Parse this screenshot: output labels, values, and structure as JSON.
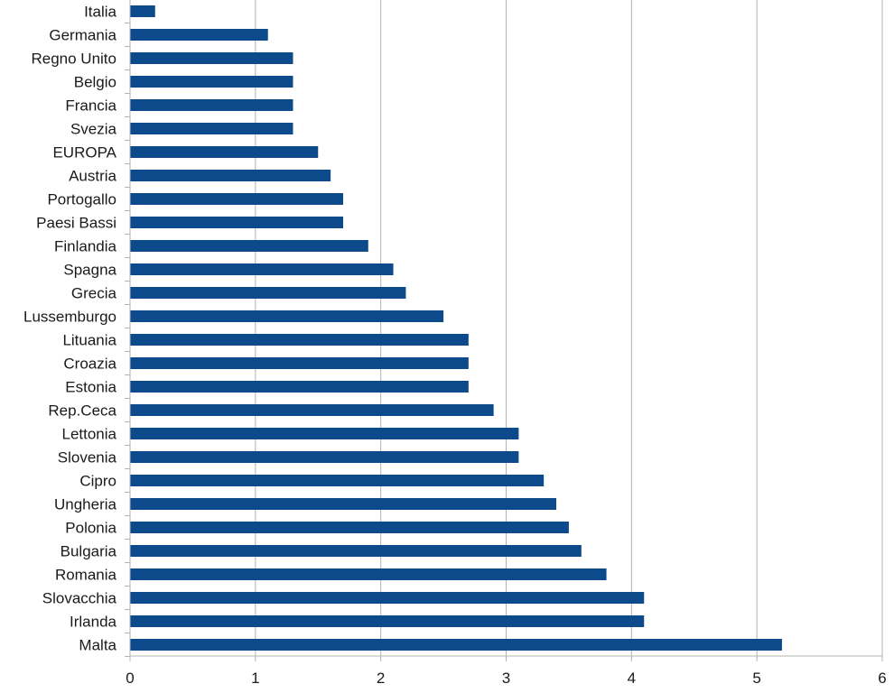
{
  "chart_data": {
    "type": "bar",
    "orientation": "horizontal",
    "categories": [
      "Italia",
      "Germania",
      "Regno Unito",
      "Belgio",
      "Francia",
      "Svezia",
      "EUROPA",
      "Austria",
      "Portogallo",
      "Paesi Bassi",
      "Finlandia",
      "Spagna",
      "Grecia",
      "Lussemburgo",
      "Lituania",
      "Croazia",
      "Estonia",
      "Rep.Ceca",
      "Lettonia",
      "Slovenia",
      "Cipro",
      "Ungheria",
      "Polonia",
      "Bulgaria",
      "Romania",
      "Slovacchia",
      "Irlanda",
      "Malta"
    ],
    "values": [
      0.2,
      1.1,
      1.3,
      1.3,
      1.3,
      1.3,
      1.5,
      1.6,
      1.7,
      1.7,
      1.9,
      2.1,
      2.2,
      2.5,
      2.7,
      2.7,
      2.7,
      2.9,
      3.1,
      3.1,
      3.3,
      3.4,
      3.5,
      3.6,
      3.8,
      4.1,
      4.1,
      5.2
    ],
    "x_ticks": [
      "0",
      "1",
      "2",
      "3",
      "4",
      "5",
      "6"
    ],
    "xlim": [
      0,
      6
    ],
    "title": "",
    "xlabel": "",
    "ylabel": "",
    "grid": "vertical",
    "legend": "none",
    "bar_color": "#0d4a8c",
    "grid_color": "#b3b3b3",
    "axis_color": "#b3b3b3"
  }
}
